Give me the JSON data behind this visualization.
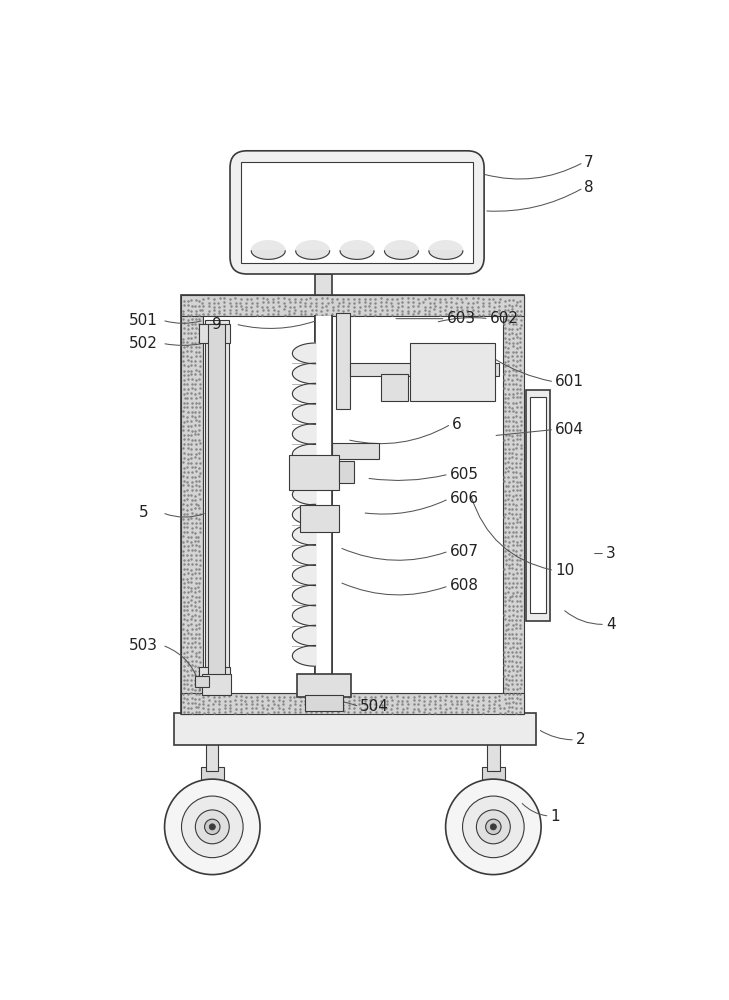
{
  "bg_color": "#ffffff",
  "lc": "#3a3a3a",
  "stipple_color": "#aaaaaa",
  "wall_fill": "#d4d4d4",
  "inner_fill": "#ffffff",
  "gray_light": "#ebebeb",
  "gray_med": "#d8d8d8"
}
